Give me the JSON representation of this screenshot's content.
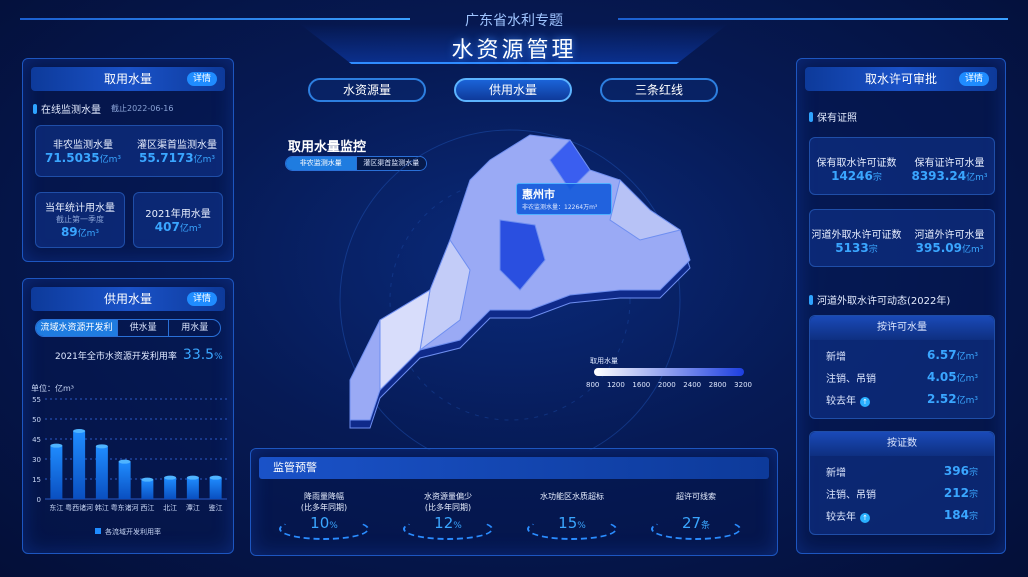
{
  "header": {
    "subtitle": "广东省水利专题",
    "title": "水资源管理"
  },
  "tabs": [
    {
      "label": "水资源量"
    },
    {
      "label": "供用水量",
      "active": true
    },
    {
      "label": "三条红线"
    }
  ],
  "left_top": {
    "title": "取用水量",
    "detail": "详情",
    "section": "在线监测水量",
    "section_date": "截止2022-06-16",
    "metrics": [
      {
        "label": "非农监测水量",
        "value": "71.5035",
        "unit": "亿m³"
      },
      {
        "label": "灌区渠首监测水量",
        "value": "55.7173",
        "unit": "亿m³"
      }
    ],
    "year_stat": {
      "label": "当年统计用水量",
      "sub": "截止第一季度",
      "value": "89",
      "unit": "亿m³"
    },
    "year_2021": {
      "label": "2021年用水量",
      "value": "407",
      "unit": "亿m³"
    }
  },
  "left_bottom": {
    "title": "供用水量",
    "detail": "详情",
    "segments": [
      "流域水资源开发利用",
      "供水量",
      "用水量"
    ],
    "rate_label": "2021年全市水资源开发利用率",
    "rate_value": "33.5",
    "rate_unit": "%"
  },
  "chart_data": {
    "type": "bar",
    "unit_label": "单位：亿m³",
    "categories": [
      "东江",
      "粤西诸河",
      "韩江",
      "粤东诸河",
      "西江",
      "北江",
      "潭江",
      "鉴江"
    ],
    "yticks": [
      0,
      15,
      30,
      45,
      50,
      55
    ],
    "series": [
      {
        "name": "各流域开发利用率",
        "values": [
          40,
          47,
          39.5,
          28,
          14.5,
          16,
          16,
          16
        ]
      }
    ],
    "color": "#1f8cff"
  },
  "map": {
    "title": "取用水量监控",
    "toggle": [
      "非农监测水量",
      "灌区渠首监测水量"
    ],
    "tooltip": {
      "city": "惠州市",
      "text": "非农监测水量：12264万m³"
    },
    "legend": {
      "title": "取用水量",
      "ticks": [
        "800",
        "1200",
        "1600",
        "2000",
        "2400",
        "2800",
        "3200"
      ]
    }
  },
  "warning": {
    "title": "监管预警",
    "items": [
      {
        "label": "降雨量降幅",
        "sub": "(比多年同期)",
        "value": "10",
        "unit": "%"
      },
      {
        "label": "水资源量偏少",
        "sub": "(比多年同期)",
        "value": "12",
        "unit": "%"
      },
      {
        "label": "水功能区水质超标",
        "sub": "",
        "value": "15",
        "unit": "%"
      },
      {
        "label": "超许可线索",
        "sub": "",
        "value": "27",
        "unit": "条"
      }
    ]
  },
  "right": {
    "title": "取水许可审批",
    "detail": "详情",
    "section1": "保有证照",
    "card1": [
      {
        "label": "保有取水许可证数",
        "value": "14246",
        "unit": "宗"
      },
      {
        "label": "保有证许可水量",
        "value": "8393.24",
        "unit": "亿m³"
      }
    ],
    "card2": [
      {
        "label": "河道外取水许可证数",
        "value": "5133",
        "unit": "宗"
      },
      {
        "label": "河道外许可水量",
        "value": "395.09",
        "unit": "亿m³"
      }
    ],
    "section2": "河道外取水许可动态(2022年)",
    "by_volume": {
      "title": "按许可水量",
      "rows": [
        {
          "label": "新增",
          "value": "6.57",
          "unit": "亿m³"
        },
        {
          "label": "注销、吊销",
          "value": "4.05",
          "unit": "亿m³"
        },
        {
          "label": "较去年",
          "value": "2.52",
          "unit": "亿m³",
          "trend": "up"
        }
      ]
    },
    "by_count": {
      "title": "按证数",
      "rows": [
        {
          "label": "新增",
          "value": "396",
          "unit": "宗"
        },
        {
          "label": "注销、吊销",
          "value": "212",
          "unit": "宗"
        },
        {
          "label": "较去年",
          "value": "184",
          "unit": "宗",
          "trend": "up"
        }
      ]
    }
  }
}
